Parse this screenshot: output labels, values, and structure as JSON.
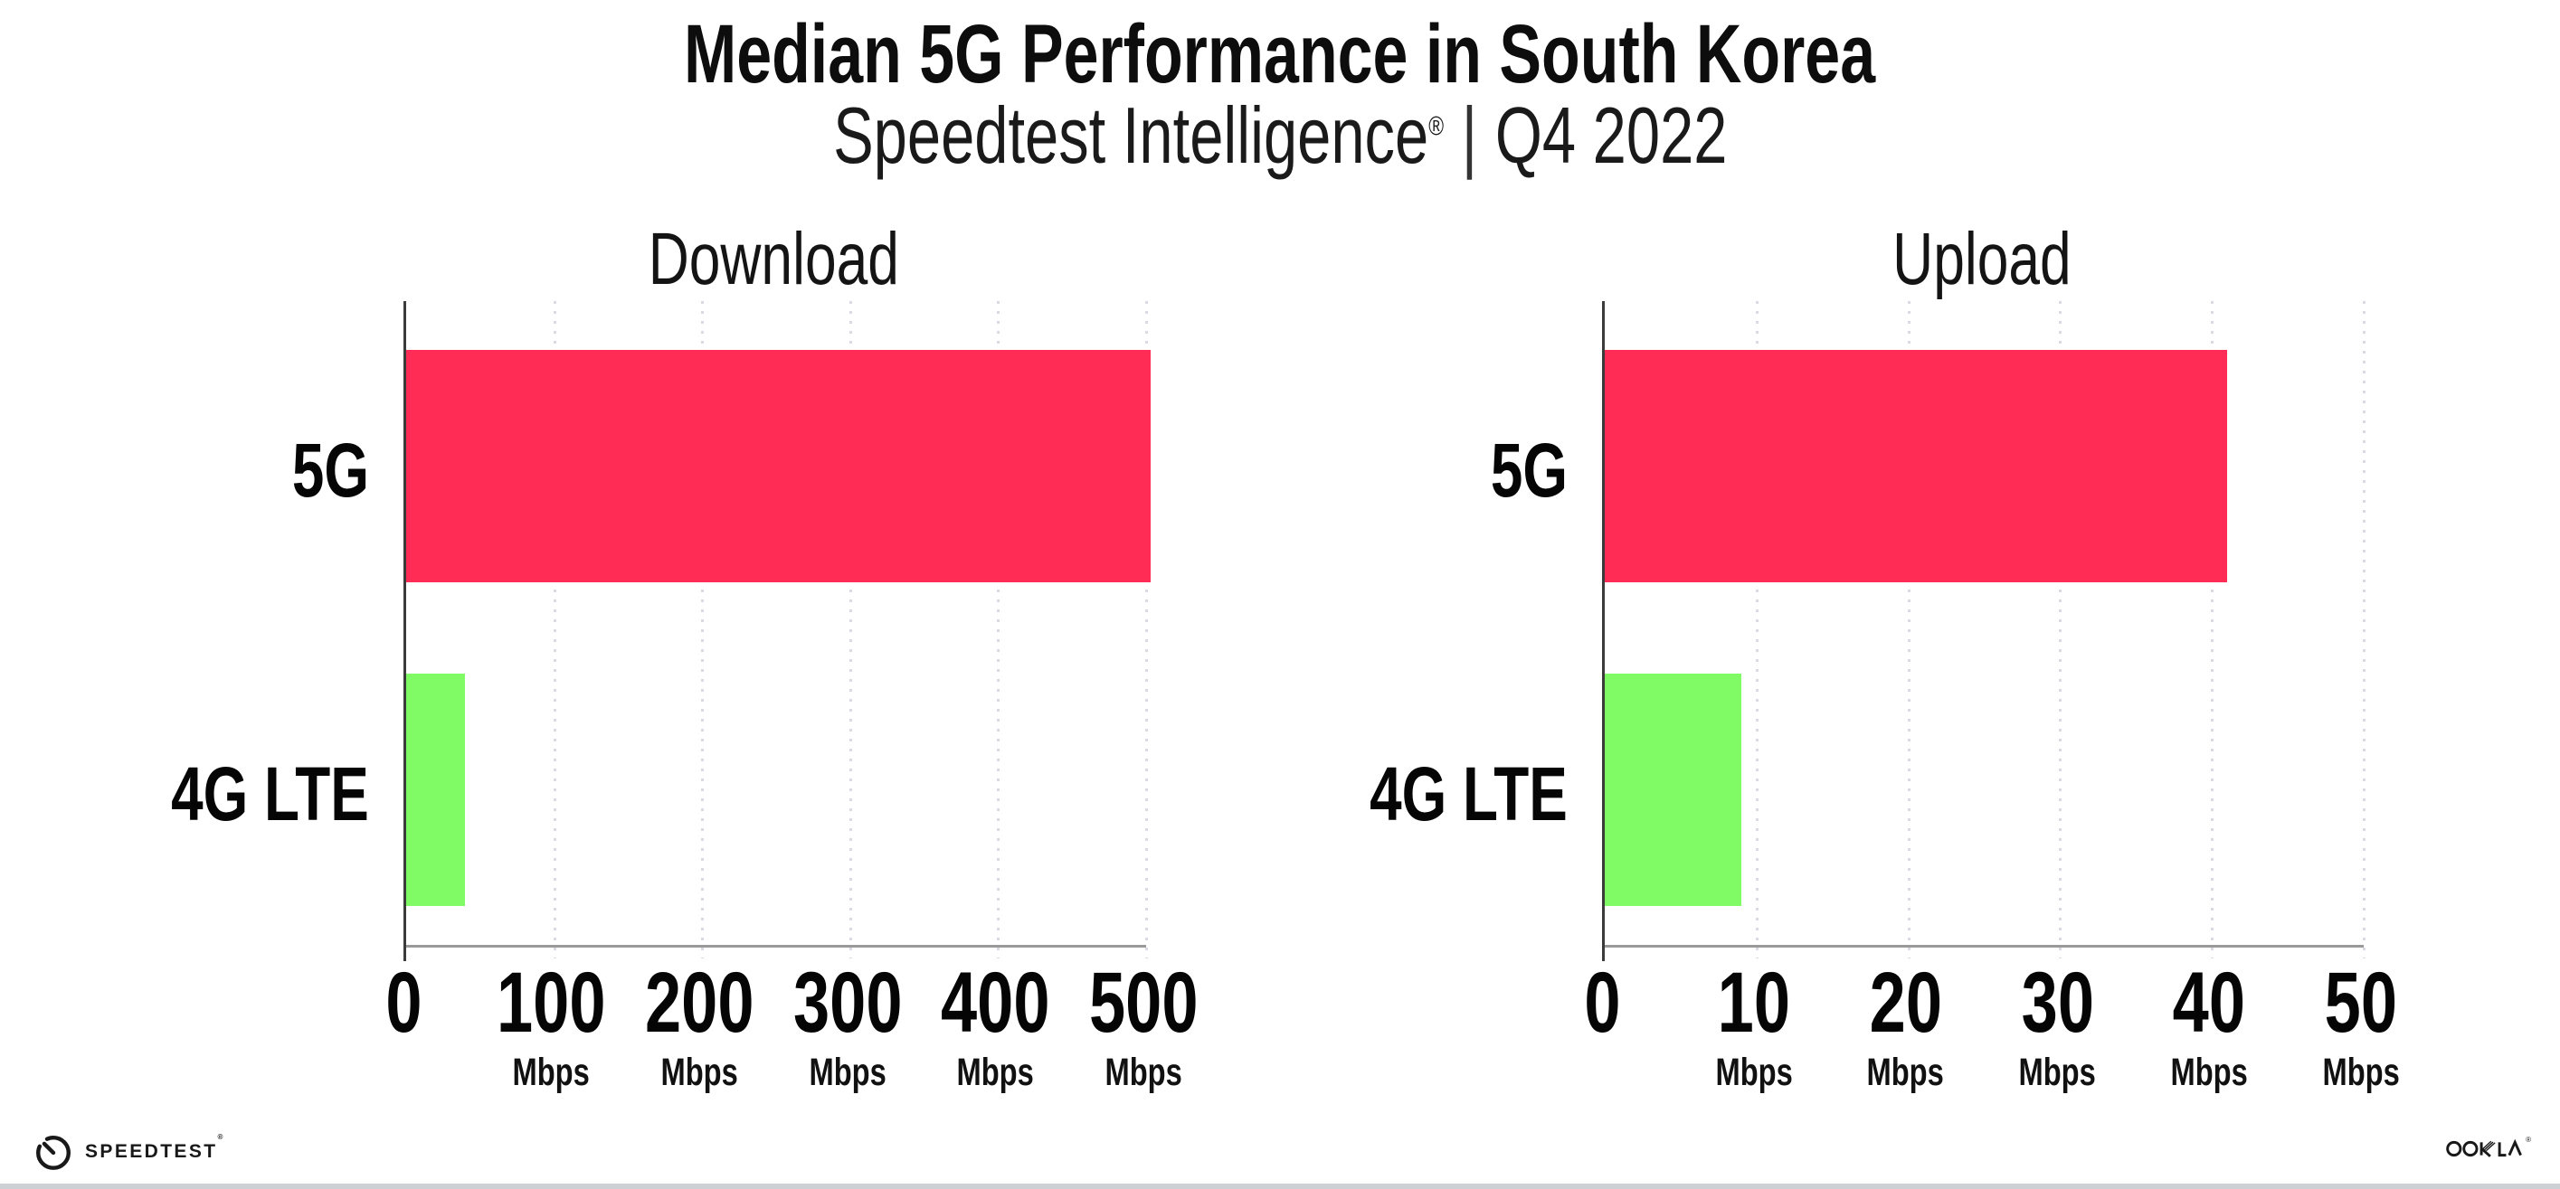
{
  "header": {
    "title": "Median 5G Performance in South Korea",
    "subtitle_brand": "Speedtest Intelligence",
    "subtitle_reg": "®",
    "subtitle_divider": "|",
    "subtitle_period": "Q4 2022"
  },
  "chart_data": [
    {
      "type": "bar",
      "orientation": "horizontal",
      "title": "Download",
      "categories": [
        "5G",
        "4G LTE"
      ],
      "values": [
        503,
        40
      ],
      "unit": "Mbps",
      "xlim": [
        0,
        500
      ],
      "xticks": [
        0,
        100,
        200,
        300,
        400,
        500
      ],
      "bar_colors": [
        "#FF2D55",
        "#80FB66"
      ],
      "grid": "dotted-vertical",
      "legend": "none"
    },
    {
      "type": "bar",
      "orientation": "horizontal",
      "title": "Upload",
      "categories": [
        "5G",
        "4G LTE"
      ],
      "values": [
        41,
        9
      ],
      "unit": "Mbps",
      "xlim": [
        0,
        50
      ],
      "xticks": [
        0,
        10,
        20,
        30,
        40,
        50
      ],
      "bar_colors": [
        "#FF2D55",
        "#80FB66"
      ],
      "grid": "dotted-vertical",
      "legend": "none"
    }
  ],
  "footer": {
    "speedtest_label": "SPEEDTEST",
    "speedtest_reg": "®",
    "ookla_label": "OOKLA",
    "ookla_reg": "®"
  },
  "colors": {
    "bar_5g": "#FF2D55",
    "bar_4g": "#80FB66",
    "grid_dot": "#d9dae4",
    "y_axis": "#3b3b3b",
    "x_axis": "#9a9a9a",
    "text": "#0d0d0d"
  }
}
